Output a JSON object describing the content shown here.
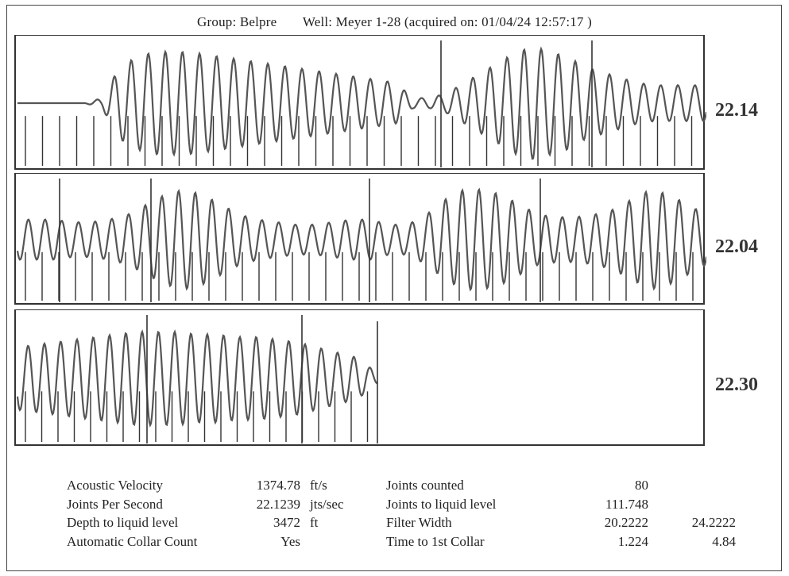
{
  "header": {
    "group": "Group: Belpre",
    "well": "Well: Meyer 1-28 (acquired on: 01/04/24 12:57:17 )"
  },
  "chart_data": {
    "type": "line",
    "title": "",
    "panels": [
      {
        "readout": "22.14",
        "trace_color": "#555555",
        "envelope": [
          0,
          0,
          0,
          0,
          0,
          0.1,
          0.7,
          0.9,
          1,
          1,
          1,
          0.95,
          0.9,
          0.85,
          0.8,
          0.75,
          0.7,
          0.65,
          0.6,
          0.55,
          0.5,
          0.45,
          0.4,
          0.1,
          0.1,
          0.2,
          0.4,
          0.6,
          0.8,
          1,
          1.1,
          1,
          0.9,
          0.7,
          0.6,
          0.5,
          0.4,
          0.35,
          0.35,
          0.35,
          0.35
        ]
      },
      {
        "readout": "22.04",
        "trace_color": "#555555",
        "envelope": [
          0.4,
          0.4,
          0.4,
          0.35,
          0.35,
          0.4,
          0.5,
          0.7,
          0.9,
          1,
          0.9,
          0.7,
          0.5,
          0.4,
          0.35,
          0.3,
          0.3,
          0.35,
          0.4,
          0.4,
          0.3,
          0.3,
          0.5,
          0.8,
          1,
          1,
          0.9,
          0.7,
          0.5,
          0.45,
          0.45,
          0.5,
          0.6,
          0.8,
          1,
          0.9,
          0.7,
          0.5
        ]
      },
      {
        "readout": "22.30",
        "trace_color": "#555555",
        "envelope": [
          0.6,
          0.65,
          0.7,
          0.75,
          0.8,
          0.85,
          0.9,
          0.9,
          0.9,
          0.85,
          0.85,
          0.8,
          0.8,
          0.75,
          0.7,
          0.6,
          0.5,
          0.4,
          0.1
        ]
      }
    ]
  },
  "stats": {
    "left": [
      {
        "label": "Acoustic Velocity",
        "value": "1374.78",
        "unit": "ft/s"
      },
      {
        "label": "Joints Per Second",
        "value": "22.1239",
        "unit": "jts/sec"
      },
      {
        "label": "Depth to liquid level",
        "value": "3472",
        "unit": "ft"
      },
      {
        "label": "Automatic Collar Count",
        "value": "Yes",
        "unit": ""
      }
    ],
    "right": [
      {
        "label": "Joints counted",
        "value": "80",
        "value2": ""
      },
      {
        "label": "Joints to liquid level",
        "value": "111.748",
        "value2": ""
      },
      {
        "label": "Filter Width",
        "value": "20.2222",
        "value2": "24.2222"
      },
      {
        "label": "Time to 1st Collar",
        "value": "1.224",
        "value2": "4.84"
      }
    ]
  }
}
